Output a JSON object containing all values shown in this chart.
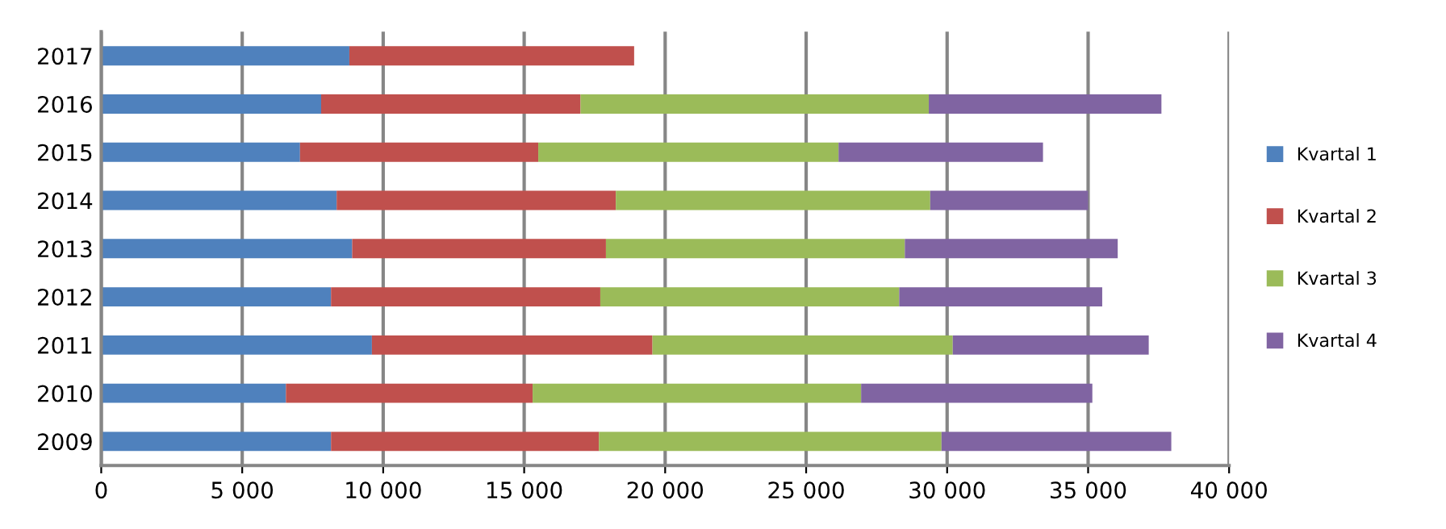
{
  "chart_data": {
    "type": "bar",
    "orientation": "horizontal",
    "stacked": true,
    "categories": [
      "2017",
      "2016",
      "2015",
      "2014",
      "2013",
      "2012",
      "2011",
      "2010",
      "2009"
    ],
    "series": [
      {
        "name": "Kvartal 1",
        "color": "#4f81bd",
        "values": [
          8800,
          7800,
          7050,
          8350,
          8900,
          8150,
          9600,
          6550,
          8150
        ]
      },
      {
        "name": "Kvartal 2",
        "color": "#c0504d",
        "values": [
          10100,
          9200,
          8450,
          9900,
          9000,
          9550,
          9950,
          8750,
          9500
        ]
      },
      {
        "name": "Kvartal 3",
        "color": "#9bbb59",
        "values": [
          null,
          12350,
          10650,
          11150,
          10600,
          10600,
          10650,
          11650,
          12150
        ]
      },
      {
        "name": "Kvartal 4",
        "color": "#8064a2",
        "values": [
          null,
          8250,
          7250,
          5600,
          7550,
          7200,
          6950,
          8200,
          8150
        ]
      }
    ],
    "xlim": [
      0,
      40000
    ],
    "xticks": [
      0,
      {
        "value": 5000,
        "label": "5 000"
      },
      {
        "value": 10000,
        "label": "10 000"
      },
      {
        "value": 15000,
        "label": "15 000"
      },
      {
        "value": 20000,
        "label": "20 000"
      },
      {
        "value": 25000,
        "label": "25 000"
      },
      {
        "value": 30000,
        "label": "30 000"
      },
      {
        "value": 35000,
        "label": "35 000"
      },
      {
        "value": 40000,
        "label": "40 000"
      }
    ],
    "grid": "x",
    "legend": "right"
  }
}
